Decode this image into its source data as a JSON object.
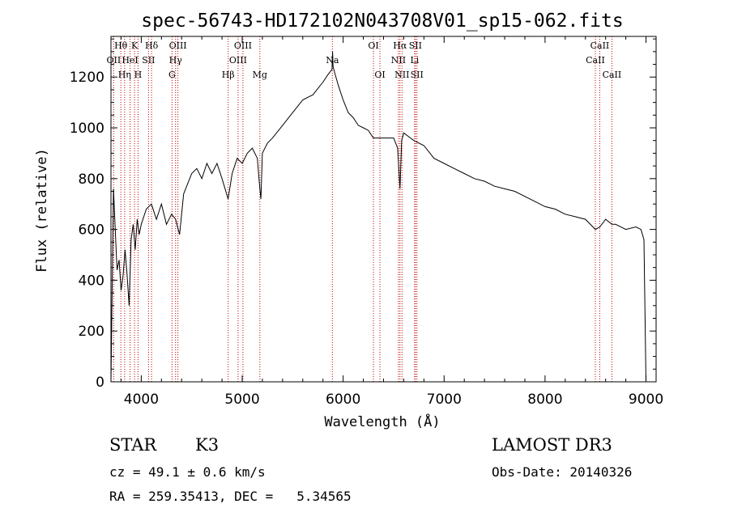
{
  "chart_data": {
    "type": "line",
    "title": "spec-56743-HD172102N043708V01_sp15-062.fits",
    "xlabel": "Wavelength (Å)",
    "ylabel": "Flux (relative)",
    "xlim": [
      3700,
      9100
    ],
    "ylim": [
      0,
      1360
    ],
    "x_ticks": [
      "4000",
      "5000",
      "6000",
      "7000",
      "8000",
      "9000"
    ],
    "y_ticks": [
      "0",
      "200",
      "400",
      "600",
      "800",
      "1000",
      "1200"
    ],
    "grid": false,
    "series": [
      {
        "x": [
          3700,
          3710,
          3725,
          3740,
          3760,
          3780,
          3800,
          3820,
          3840,
          3860,
          3880,
          3900,
          3920,
          3940,
          3960,
          3980,
          4000,
          4050,
          4100,
          4150,
          4200,
          4250,
          4300,
          4340,
          4380,
          4420,
          4460,
          4500,
          4550,
          4600,
          4650,
          4700,
          4750,
          4800,
          4860,
          4900,
          4950,
          5000,
          5050,
          5100,
          5150,
          5175,
          5185,
          5200,
          5250,
          5300,
          5400,
          5500,
          5600,
          5700,
          5800,
          5850,
          5890,
          5895,
          5900,
          5950,
          6000,
          6050,
          6100,
          6150,
          6200,
          6250,
          6300,
          6400,
          6500,
          6540,
          6563,
          6580,
          6600,
          6700,
          6800,
          6900,
          7000,
          7100,
          7200,
          7300,
          7400,
          7500,
          7600,
          7700,
          7800,
          7900,
          8000,
          8100,
          8200,
          8300,
          8400,
          8498,
          8542,
          8600,
          8662,
          8700,
          8800,
          8900,
          8950,
          8980,
          9000
        ],
        "y": [
          0,
          300,
          760,
          620,
          440,
          480,
          360,
          420,
          520,
          420,
          300,
          560,
          620,
          520,
          640,
          580,
          620,
          680,
          700,
          640,
          700,
          620,
          660,
          640,
          580,
          740,
          780,
          820,
          840,
          800,
          860,
          820,
          860,
          800,
          720,
          820,
          880,
          860,
          900,
          920,
          880,
          760,
          720,
          900,
          940,
          960,
          1010,
          1060,
          1110,
          1130,
          1180,
          1210,
          1230,
          1300,
          1240,
          1170,
          1110,
          1060,
          1040,
          1010,
          1000,
          990,
          960,
          960,
          960,
          920,
          760,
          950,
          980,
          950,
          930,
          880,
          860,
          840,
          820,
          800,
          790,
          770,
          760,
          750,
          730,
          710,
          690,
          680,
          660,
          650,
          640,
          600,
          610,
          640,
          620,
          620,
          600,
          610,
          600,
          560,
          0
        ]
      }
    ],
    "spectral_lines": [
      {
        "label": "Hθ",
        "x": 3798,
        "row": 0
      },
      {
        "label": "OII",
        "x": 3727,
        "row": 1
      },
      {
        "label": "Hη",
        "x": 3835,
        "row": 2
      },
      {
        "label": "K",
        "x": 3934,
        "row": 0
      },
      {
        "label": "HeI",
        "x": 3889,
        "row": 1
      },
      {
        "label": "H",
        "x": 3968,
        "row": 2
      },
      {
        "label": "Hδ",
        "x": 4102,
        "row": 0
      },
      {
        "label": "SII",
        "x": 4072,
        "row": 1
      },
      {
        "label": "OIII",
        "x": 4363,
        "row": 0
      },
      {
        "label": "Hγ",
        "x": 4340,
        "row": 1
      },
      {
        "label": "G",
        "x": 4305,
        "row": 2
      },
      {
        "label": "Hβ",
        "x": 4861,
        "row": 2
      },
      {
        "label": "OIII",
        "x": 5007,
        "row": 0
      },
      {
        "label": "OIII",
        "x": 4959,
        "row": 1
      },
      {
        "label": "Mg",
        "x": 5175,
        "row": 2
      },
      {
        "label": "Na",
        "x": 5893,
        "row": 1
      },
      {
        "label": "OI",
        "x": 6300,
        "row": 0
      },
      {
        "label": "OI",
        "x": 6364,
        "row": 2
      },
      {
        "label": "Hα",
        "x": 6563,
        "row": 0
      },
      {
        "label": "SII",
        "x": 6716,
        "row": 0
      },
      {
        "label": "NII",
        "x": 6548,
        "row": 1
      },
      {
        "label": "Li",
        "x": 6708,
        "row": 1
      },
      {
        "label": "NII",
        "x": 6583,
        "row": 2
      },
      {
        "label": "SII",
        "x": 6731,
        "row": 2
      },
      {
        "label": "CaII",
        "x": 8542,
        "row": 0
      },
      {
        "label": "CaII",
        "x": 8498,
        "row": 1
      },
      {
        "label": "CaII",
        "x": 8662,
        "row": 2
      }
    ],
    "line_color": "#000000",
    "marker_color": "#c00000"
  },
  "info": {
    "class": "STAR",
    "subclass": "K3",
    "survey": "LAMOST DR3",
    "cz": "cz = 49.1 ± 0.6 km/s",
    "obs_date": "Obs-Date: 20140326",
    "radec": "RA = 259.35413, DEC =   5.34565"
  }
}
